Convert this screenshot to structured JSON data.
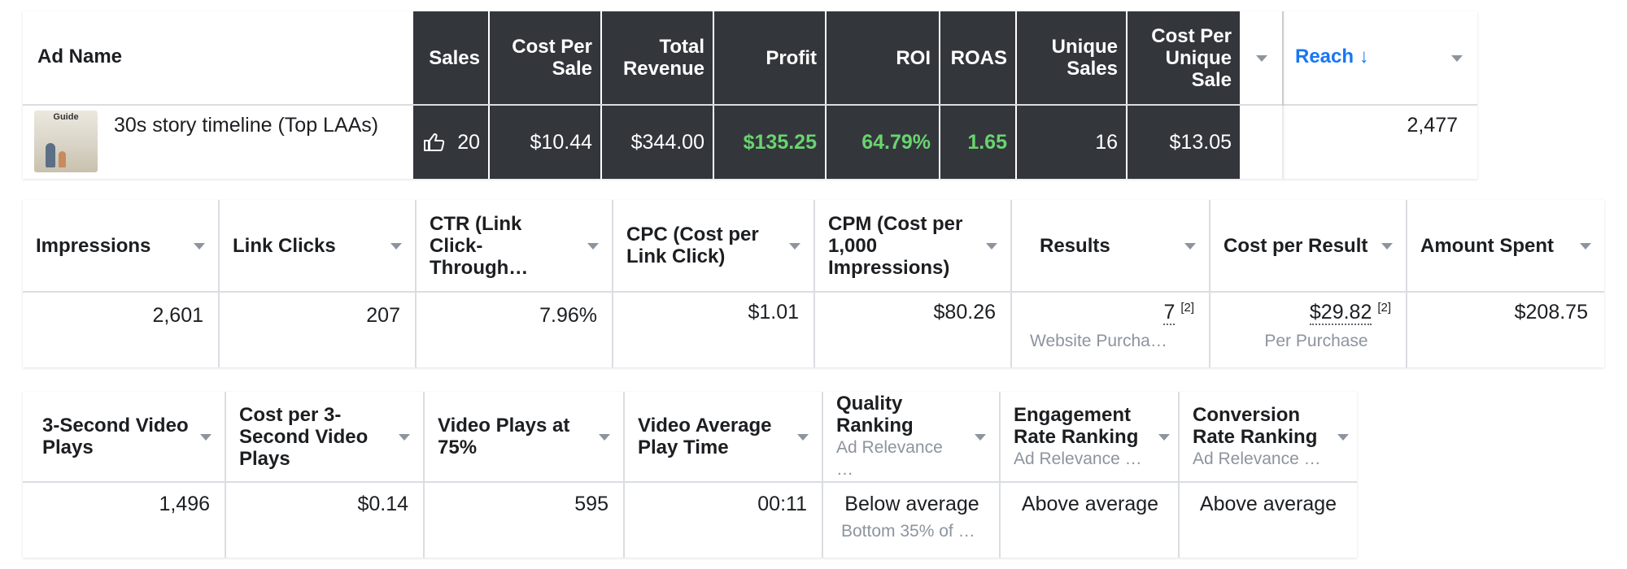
{
  "top_table": {
    "headers": {
      "ad_name": "Ad Name",
      "sales": "Sales",
      "cost_per_sale": "Cost Per Sale",
      "total_revenue": "Total Revenue",
      "profit": "Profit",
      "roi": "ROI",
      "roas": "ROAS",
      "unique_sales": "Unique Sales",
      "cost_per_unique_sale": "Cost Per Unique Sale",
      "reach": "Reach ↓"
    },
    "row": {
      "thumbnail_text": "Guide",
      "ad_name": "30s story timeline (Top LAAs)",
      "sales": "20",
      "cost_per_sale": "$10.44",
      "total_revenue": "$344.00",
      "profit": "$135.25",
      "roi": "64.79%",
      "roas": "1.65",
      "unique_sales": "16",
      "cost_per_unique_sale": "$13.05",
      "reach": "2,477"
    },
    "accent_color": "#1877f2",
    "profit_color": "#69d46e"
  },
  "middle_table": {
    "headers": {
      "impressions": "Impressions",
      "link_clicks": "Link Clicks",
      "ctr": "CTR (Link Click-Through…",
      "cpc": "CPC (Cost per Link Click)",
      "cpm": "CPM (Cost per 1,000 Impressions)",
      "results": "Results",
      "cost_per_result": "Cost per Result",
      "amount_spent": "Amount Spent"
    },
    "row": {
      "impressions": "2,601",
      "link_clicks": "207",
      "ctr": "7.96%",
      "cpc": "$1.01",
      "cpm": "$80.26",
      "results": "7",
      "results_note": "[2]",
      "results_sub": "Website Purcha…",
      "cost_per_result": "$29.82",
      "cost_per_result_note": "[2]",
      "cost_per_result_sub": "Per Purchase",
      "amount_spent": "$208.75"
    }
  },
  "bottom_table": {
    "headers": {
      "three_second_plays": "3-Second Video Plays",
      "cost_per_three_second": "Cost per 3-Second Video Plays",
      "plays_75": "Video Plays at 75%",
      "avg_play_time": "Video Average Play Time",
      "quality_ranking": "Quality Ranking",
      "quality_ranking_sub": "Ad Relevance …",
      "engagement_ranking": "Engagement Rate Ranking",
      "engagement_ranking_sub": "Ad Relevance …",
      "conversion_ranking": "Conversion Rate Ranking",
      "conversion_ranking_sub": "Ad Relevance …"
    },
    "row": {
      "three_second_plays": "1,496",
      "cost_per_three_second": "$0.14",
      "plays_75": "595",
      "avg_play_time": "00:11",
      "quality_ranking": "Below average",
      "quality_ranking_sub": "Bottom 35% of …",
      "engagement_ranking": "Above average",
      "conversion_ranking": "Above average"
    }
  }
}
